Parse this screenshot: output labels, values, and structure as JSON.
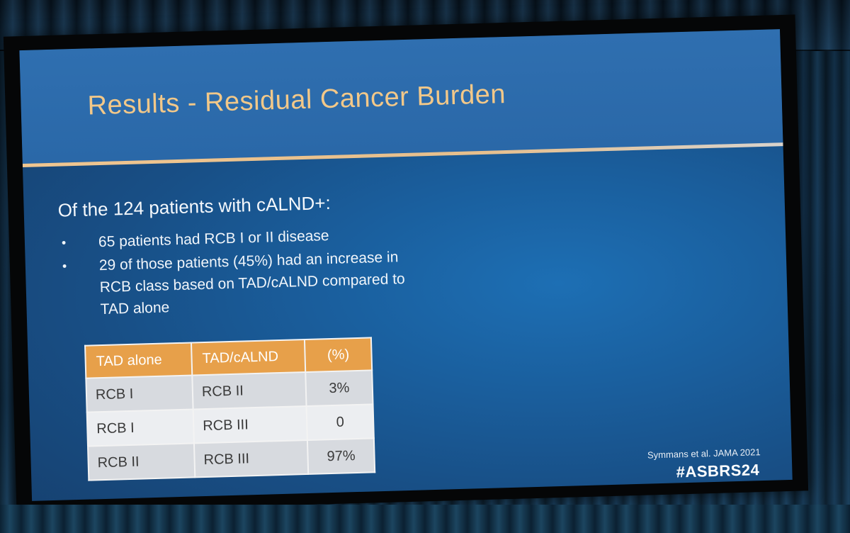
{
  "slide": {
    "title": "Results - Residual Cancer Burden",
    "lead": "Of the 124 patients with cALND+:",
    "bullets": [
      "65 patients had RCB I or II disease",
      "29 of those patients (45%) had an increase in RCB class based on TAD/cALND compared to TAD alone"
    ],
    "bullet_glyph": "•",
    "table": {
      "headers": [
        "TAD alone",
        "TAD/cALND",
        "(%)"
      ],
      "rows": [
        [
          "RCB I",
          "RCB II",
          "3%"
        ],
        [
          "RCB I",
          "RCB III",
          "0"
        ],
        [
          "RCB II",
          "RCB III",
          "97%"
        ]
      ]
    },
    "citation": "Symmans et al. JAMA 2021",
    "hashtag": "#ASBRS24"
  },
  "colors": {
    "title": "#f2c889",
    "slide_background": "#1a5f9e",
    "table_header": "#e7a04a",
    "divider": "#f0c690"
  }
}
